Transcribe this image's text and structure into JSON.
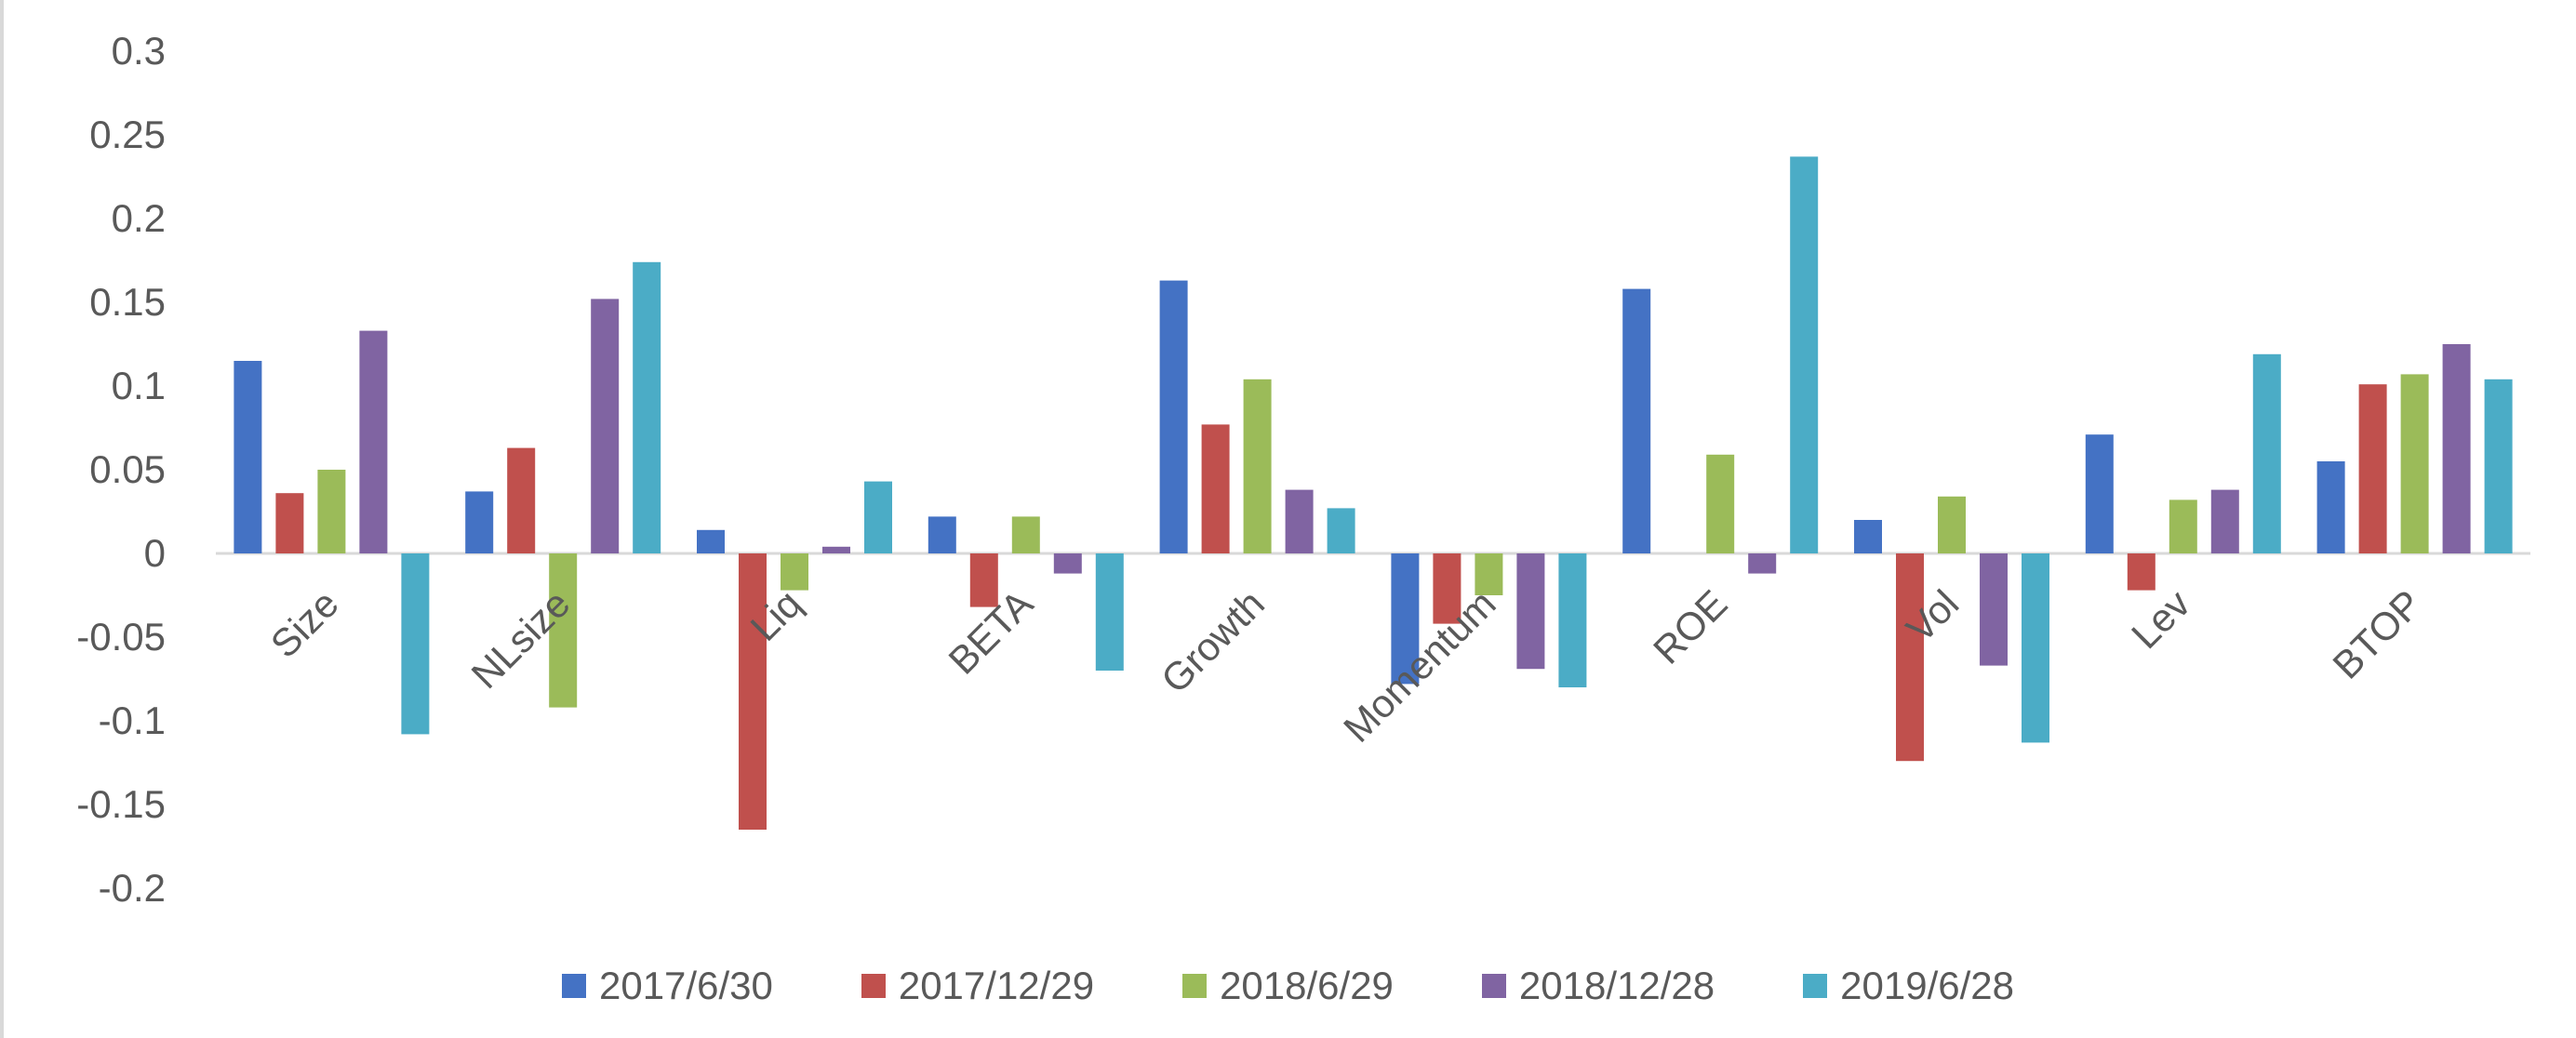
{
  "chart_data": {
    "type": "bar",
    "title": "",
    "xlabel": "",
    "ylabel": "",
    "categories": [
      "Size",
      "NLsize",
      "Liq",
      "BETA",
      "Growth",
      "Momentum",
      "ROE",
      "Vol",
      "Lev",
      "BTOP"
    ],
    "ylim": [
      -0.2,
      0.3
    ],
    "yticks": [
      0.3,
      0.25,
      0.2,
      0.15,
      0.1,
      0.05,
      0,
      -0.05,
      -0.1,
      -0.15,
      -0.2
    ],
    "ytick_labels": [
      "0.3",
      "0.25",
      "0.2",
      "0.15",
      "0.1",
      "0.05",
      "0",
      "-0.05",
      "-0.1",
      "-0.15",
      "-0.2"
    ],
    "grid": false,
    "legend_position": "bottom",
    "series": [
      {
        "name": "2017/6/30",
        "color": "#4472C4",
        "values": [
          0.115,
          0.037,
          0.014,
          0.022,
          0.163,
          -0.078,
          0.158,
          0.02,
          0.071,
          0.055
        ]
      },
      {
        "name": "2017/12/29",
        "color": "#C0504D",
        "values": [
          0.036,
          0.063,
          -0.165,
          -0.032,
          0.077,
          -0.042,
          0.0,
          -0.124,
          -0.022,
          0.101
        ]
      },
      {
        "name": "2018/6/29",
        "color": "#9BBB59",
        "values": [
          0.05,
          -0.092,
          -0.022,
          0.022,
          0.104,
          -0.025,
          0.059,
          0.034,
          0.032,
          0.107
        ]
      },
      {
        "name": "2018/12/28",
        "color": "#8064A2",
        "values": [
          0.133,
          0.152,
          0.004,
          -0.012,
          0.038,
          -0.069,
          -0.012,
          -0.067,
          0.038,
          0.125
        ]
      },
      {
        "name": "2019/6/28",
        "color": "#4BACC6",
        "values": [
          -0.108,
          0.174,
          0.043,
          -0.07,
          0.027,
          -0.08,
          0.237,
          -0.113,
          0.119,
          0.104
        ]
      }
    ]
  }
}
